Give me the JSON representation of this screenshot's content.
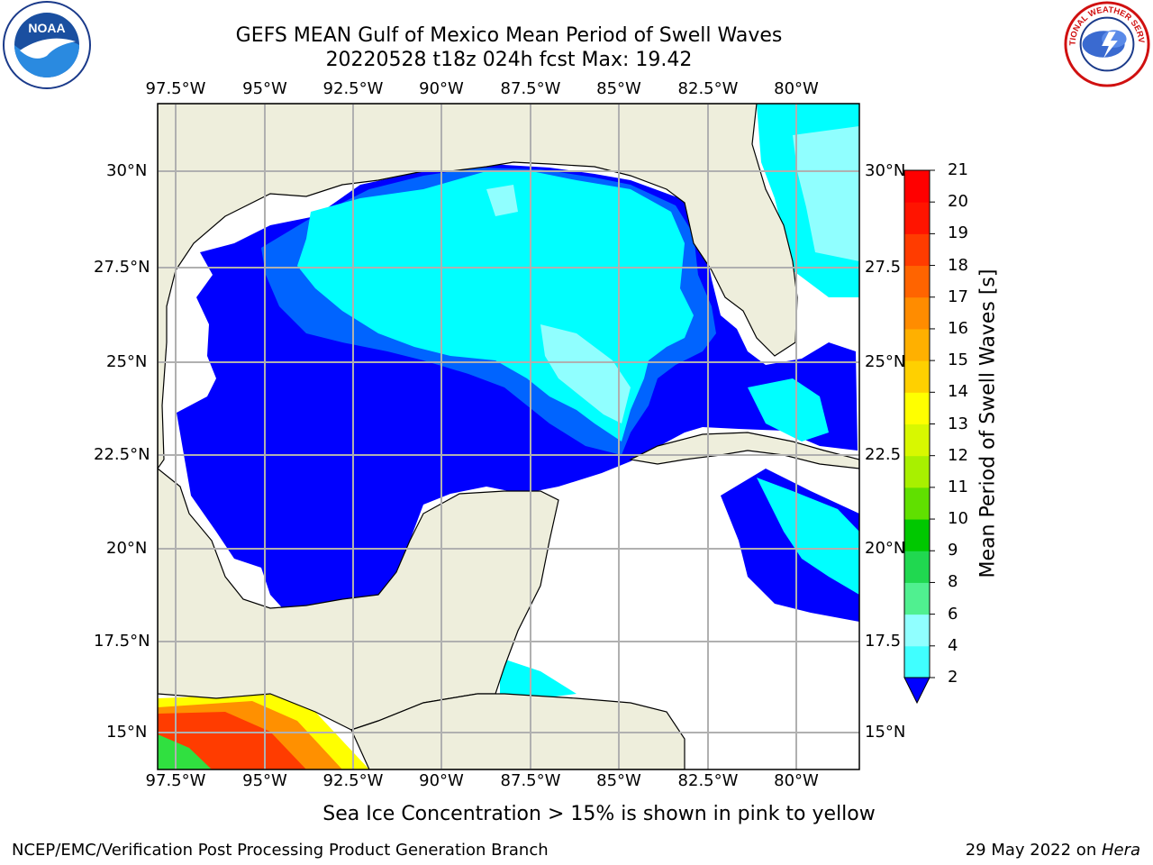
{
  "title": {
    "line1": "GEFS MEAN Gulf of Mexico Mean Period of Swell Waves",
    "line2": "20220528 t18z 024h fcst   Max: 19.42"
  },
  "map": {
    "lon_ticks": [
      "97.5°W",
      "95°W",
      "92.5°W",
      "90°W",
      "87.5°W",
      "85°W",
      "82.5°W",
      "80°W"
    ],
    "lat_ticks_left": [
      "30°N",
      "27.5°N",
      "25°N",
      "22.5°N",
      "20°N",
      "17.5°N",
      "15°N"
    ],
    "lat_ticks_right": [
      "30°N",
      "27.5",
      "25°N",
      "22.5",
      "20°N",
      "17.5",
      "15°N"
    ],
    "land_color": "#eeeedc",
    "grid_color": "#b0b0b0"
  },
  "colorbar": {
    "title": "Mean Period of Swell Waves [s]",
    "ticks": [
      "2",
      "4",
      "6",
      "8",
      "9",
      "10",
      "11",
      "12",
      "13",
      "14",
      "15",
      "16",
      "17",
      "18",
      "19",
      "20",
      "21"
    ],
    "colors": [
      "#0000ff",
      "#0064ff",
      "#00d2ff",
      "#00ffff",
      "#40ffff",
      "#90ffff",
      "#50f090",
      "#20d850",
      "#00c800",
      "#60e000",
      "#a8f000",
      "#d8f800",
      "#ffff00",
      "#ffd000",
      "#ffb000",
      "#ff8c00",
      "#ff6400",
      "#ff3c00",
      "#ff1400",
      "#ff0000"
    ]
  },
  "subtitle": "Sea Ice Concentration > 15% is shown in pink to yellow",
  "footer": {
    "left": "NCEP/EMC/Verification Post Processing Product Generation Branch",
    "right_prefix": "29 May 2022 on ",
    "right_host": "Hera"
  },
  "logos": {
    "noaa": "noaa-logo",
    "nws": "nws-logo",
    "noaa_text": "NOAA",
    "nws_text": "NATIONAL WEATHER SERVICE"
  }
}
